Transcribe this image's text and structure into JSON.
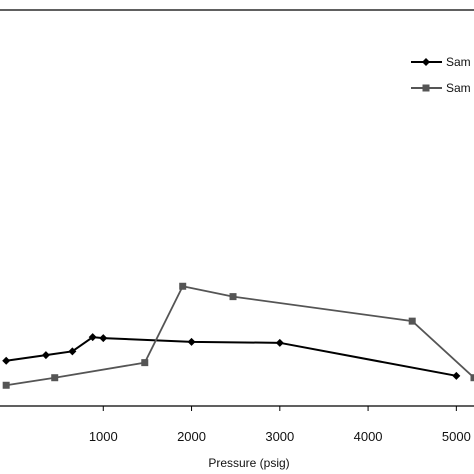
{
  "chart_data": {
    "type": "line",
    "title": "",
    "xlabel": "Pressure (psig)",
    "ylabel": "",
    "xlim": [
      -170,
      5200
    ],
    "ylim": [
      0,
      420
    ],
    "xticks": [
      1000,
      2000,
      3000,
      4000,
      5000
    ],
    "xtick_labels": [
      "1000",
      "2000",
      "3000",
      "4000",
      "5000"
    ],
    "grid": false,
    "legend_position": "top-right",
    "series": [
      {
        "name": "Sam",
        "color": "#000000",
        "marker": "diamond",
        "x": [
          -100,
          350,
          650,
          880,
          1000,
          2000,
          3000,
          5000
        ],
        "y": [
          48,
          54,
          58,
          73,
          72,
          68,
          67,
          32
        ]
      },
      {
        "name": "Sam",
        "color": "#555555",
        "marker": "square",
        "x": [
          -100,
          450,
          1470,
          1900,
          2470,
          4500,
          5200
        ],
        "y": [
          22,
          30,
          46,
          127,
          116,
          90,
          30
        ]
      }
    ]
  }
}
